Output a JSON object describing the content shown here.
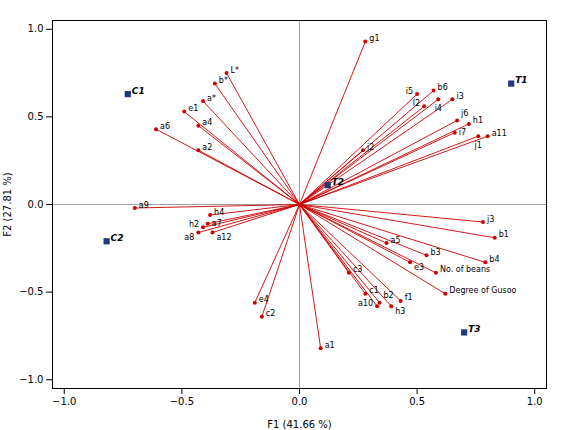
{
  "chart_data": {
    "type": "biplot",
    "xlabel": "F1 (41.66 %)",
    "ylabel": "F2 (27.81 %)",
    "xlim": [
      -1.05,
      1.05
    ],
    "ylim": [
      -1.05,
      1.05
    ],
    "xticks": [
      {
        "value": -1.0,
        "label": "−1.0"
      },
      {
        "value": -0.5,
        "label": "−0.5"
      },
      {
        "value": 0.0,
        "label": "0.0"
      },
      {
        "value": 0.5,
        "label": "0.5"
      },
      {
        "value": 1.0,
        "label": "1.0"
      }
    ],
    "yticks": [
      {
        "value": -1.0,
        "label": "−1.0"
      },
      {
        "value": -0.5,
        "label": "−0.5"
      },
      {
        "value": 0.0,
        "label": "0.0"
      },
      {
        "value": 0.5,
        "label": "0.5"
      },
      {
        "value": 1.0,
        "label": "1.0"
      }
    ],
    "grid": false,
    "series": [
      {
        "type": "vector",
        "color": "#cc0000",
        "marker": "circle",
        "labels": [
          "g1",
          "i5",
          "b6",
          "i4",
          "i3",
          "l2",
          "j6",
          "h1",
          "i7",
          "j1",
          "a11",
          "j2",
          "j3",
          "b1",
          "a5",
          "b3",
          "e3",
          "b4",
          "No. of beans",
          "c3",
          "c1",
          "b2",
          "f1",
          "a10",
          "h3",
          "Degree of Gusoo",
          "a1",
          "e4",
          "c2",
          "L*",
          "b*",
          "a*",
          "e1",
          "a4",
          "a6",
          "a2",
          "a9",
          "h4",
          "a7",
          "h2",
          "a8",
          "a12"
        ],
        "x": [
          0.28,
          0.5,
          0.57,
          0.59,
          0.65,
          0.53,
          0.67,
          0.72,
          0.66,
          0.76,
          0.8,
          0.27,
          0.78,
          0.83,
          0.37,
          0.54,
          0.47,
          0.79,
          0.58,
          0.21,
          0.28,
          0.34,
          0.43,
          0.33,
          0.39,
          0.62,
          0.09,
          -0.19,
          -0.16,
          -0.31,
          -0.36,
          -0.41,
          -0.49,
          -0.43,
          -0.61,
          -0.43,
          -0.7,
          -0.38,
          -0.39,
          -0.41,
          -0.43,
          -0.37
        ],
        "y": [
          0.93,
          0.63,
          0.65,
          0.6,
          0.6,
          0.56,
          0.48,
          0.46,
          0.41,
          0.39,
          0.39,
          0.31,
          -0.1,
          -0.19,
          -0.22,
          -0.29,
          -0.33,
          -0.33,
          -0.39,
          -0.39,
          -0.51,
          -0.56,
          -0.55,
          -0.58,
          -0.58,
          -0.51,
          -0.82,
          -0.56,
          -0.64,
          0.75,
          0.69,
          0.59,
          0.53,
          0.45,
          0.43,
          0.31,
          -0.02,
          -0.06,
          -0.11,
          -0.13,
          -0.16,
          -0.16
        ]
      },
      {
        "type": "scatter",
        "color": "#1f3a7a",
        "marker": "square",
        "labels": [
          "T1",
          "T2",
          "T3",
          "C1",
          "C2"
        ],
        "x": [
          0.9,
          0.12,
          0.7,
          -0.73,
          -0.82
        ],
        "y": [
          0.69,
          0.11,
          -0.73,
          0.63,
          -0.21
        ]
      }
    ]
  }
}
